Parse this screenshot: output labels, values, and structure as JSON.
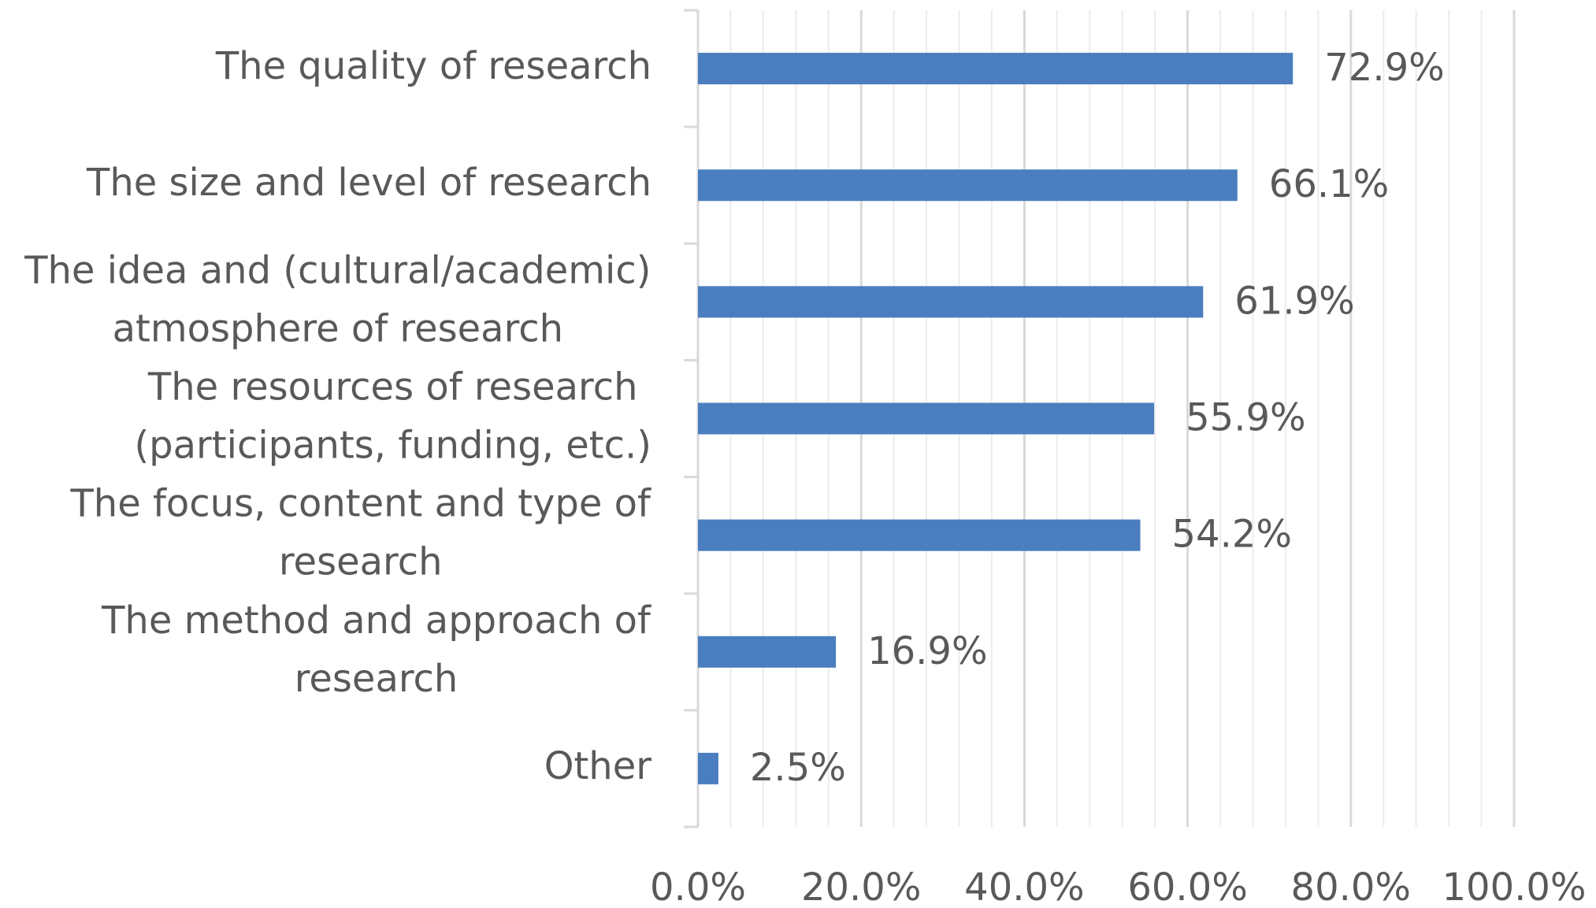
{
  "chart_data": {
    "type": "barh",
    "categories": [
      [
        "The quality of research"
      ],
      [
        "The size and level of research"
      ],
      [
        "The idea and (cultural/academic)",
        "atmosphere of research"
      ],
      [
        "The resources of research",
        "(participants, funding, etc.)"
      ],
      [
        "The focus, content and type of",
        "research"
      ],
      [
        "The method and approach of",
        "research"
      ],
      [
        "Other"
      ]
    ],
    "values": [
      72.9,
      66.1,
      61.9,
      55.9,
      54.2,
      16.9,
      2.5
    ],
    "value_labels": [
      "72.9%",
      "66.1%",
      "61.9%",
      "55.9%",
      "54.2%",
      "16.9%",
      "2.5%"
    ],
    "color": "#4a7ebf",
    "xlim": [
      0,
      100
    ],
    "xticks": [
      {
        "value": 0,
        "label": "0.0%"
      },
      {
        "value": 20,
        "label": "20.0%"
      },
      {
        "value": 40,
        "label": "40.0%"
      },
      {
        "value": 60,
        "label": "60.0%"
      },
      {
        "value": 80,
        "label": "80.0%"
      },
      {
        "value": 100,
        "label": "100.0%"
      }
    ],
    "xminorticks": [
      4,
      8,
      12,
      16,
      24,
      28,
      32,
      36,
      44,
      48,
      52,
      56,
      64,
      68,
      72,
      76,
      84,
      88,
      92,
      96
    ],
    "grid": true
  }
}
